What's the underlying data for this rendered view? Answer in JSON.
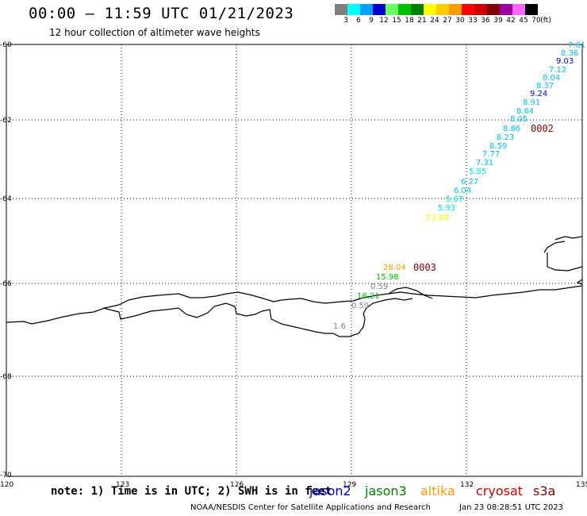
{
  "title": "00:00 – 11:59 UTC 01/21/2023",
  "subtitle": "12 hour collection of altimeter wave heights",
  "legend": {
    "units": "(ft)",
    "entries": [
      {
        "label": "3",
        "color": "#808080"
      },
      {
        "label": "6",
        "color": "#00ffff"
      },
      {
        "label": "9",
        "color": "#00a0ff"
      },
      {
        "label": "12",
        "color": "#0000cd"
      },
      {
        "label": "15",
        "color": "#66ff66"
      },
      {
        "label": "18",
        "color": "#00c000"
      },
      {
        "label": "21",
        "color": "#008000"
      },
      {
        "label": "24",
        "color": "#ffff00"
      },
      {
        "label": "27",
        "color": "#ffcc00"
      },
      {
        "label": "30",
        "color": "#ff9900"
      },
      {
        "label": "33",
        "color": "#ff0000"
      },
      {
        "label": "36",
        "color": "#cc0000"
      },
      {
        "label": "39",
        "color": "#800000"
      },
      {
        "label": "42",
        "color": "#a000a0"
      },
      {
        "label": "45",
        "color": "#ff66ff"
      },
      {
        "label": "70",
        "color": "#000000"
      }
    ]
  },
  "axes": {
    "lat_labels": [
      "-60",
      "-62",
      "-64",
      "-66",
      "-68",
      "-70"
    ],
    "lon_labels": [
      "120",
      "123",
      "126",
      "129",
      "132",
      "135"
    ]
  },
  "observations": [
    {
      "text": "7.61",
      "color": "#00bfff"
    },
    {
      "text": "8.36",
      "color": "#00bfff"
    },
    {
      "text": "9.03",
      "color": "#0000cd"
    },
    {
      "text": "7.12",
      "color": "#00bfff"
    },
    {
      "text": "8.04",
      "color": "#00bfff"
    },
    {
      "text": "8.37",
      "color": "#00bfff"
    },
    {
      "text": "9.24",
      "color": "#0000cd"
    },
    {
      "text": "8.91",
      "color": "#00bfff"
    },
    {
      "text": "8.64",
      "color": "#00bfff"
    },
    {
      "text": "8.05",
      "color": "#00bfff"
    },
    {
      "text": "8.86",
      "color": "#00bfff"
    },
    {
      "text": "8.23",
      "color": "#00bfff"
    },
    {
      "text": "8.59",
      "color": "#00bfff"
    },
    {
      "text": "7.77",
      "color": "#00bfff"
    },
    {
      "text": "7.31",
      "color": "#00bfff"
    },
    {
      "text": "5.85",
      "color": "#00e5ee"
    },
    {
      "text": "6.27",
      "color": "#00bfff"
    },
    {
      "text": "6.04",
      "color": "#00bfff"
    },
    {
      "text": "5.67",
      "color": "#00e5ee"
    },
    {
      "text": "5.93",
      "color": "#00e5ee"
    },
    {
      "text": "23.88",
      "color": "#ffff00"
    },
    {
      "text": "28.04",
      "color": "#ff9900"
    },
    {
      "text": "15.98",
      "color": "#00c000"
    },
    {
      "text": "0.59",
      "color": "#808080"
    },
    {
      "text": "16.21",
      "color": "#00c000"
    },
    {
      "text": "0.59",
      "color": "#808080"
    },
    {
      "text": "1.6",
      "color": "#808080"
    }
  ],
  "track_ids": [
    {
      "text": "0002",
      "color": "#800000"
    },
    {
      "text": "0003",
      "color": "#800000"
    }
  ],
  "note": "note: 1) Time is in UTC; 2) SWH is in feet",
  "satellites": [
    {
      "name": "jason2",
      "color": "#0000cd"
    },
    {
      "name": "jason3",
      "color": "#008000"
    },
    {
      "name": "altika",
      "color": "#ff9900"
    },
    {
      "name": "cryosat",
      "color": "#cc0000"
    },
    {
      "name": "s3a",
      "color": "#800000"
    }
  ],
  "footer": {
    "org": "NOAA/NESDIS Center for Satellite Applications and Research",
    "timestamp": "Jan 23 08:28:51 UTC 2023"
  }
}
